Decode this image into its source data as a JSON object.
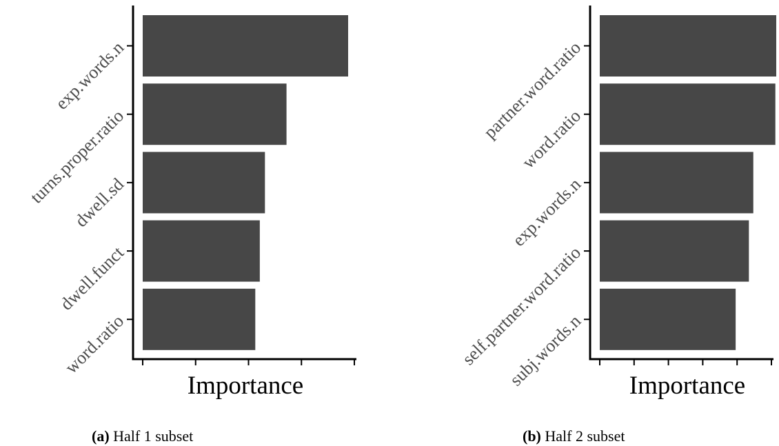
{
  "chart_data": [
    {
      "type": "bar",
      "orientation": "horizontal",
      "categories": [
        "exp.words.n",
        "turns.proper.ratio",
        "dwell.sd",
        "dwell.funct",
        "word.ratio"
      ],
      "values": [
        1.0,
        0.7,
        0.595,
        0.57,
        0.548
      ],
      "xlabel": "Importance",
      "ylabel": "",
      "xlim": [
        0,
        1.04
      ],
      "x_ticks_count": 5,
      "grid": false,
      "bar_color": "#474747",
      "caption_tag": "(a)",
      "caption_text": "Half 1 subset"
    },
    {
      "type": "bar",
      "orientation": "horizontal",
      "categories": [
        "partner.word.ratio",
        "word.ratio",
        "exp.words.n",
        "self.partner.word.ratio",
        "subj.words.n"
      ],
      "values": [
        1.0,
        0.995,
        0.87,
        0.845,
        0.77
      ],
      "xlabel": "Importance",
      "ylabel": "",
      "xlim": [
        0,
        1.0
      ],
      "x_ticks_count": 6,
      "grid": false,
      "bar_color": "#474747",
      "caption_tag": "(b)",
      "caption_text": "Half 2 subset"
    }
  ]
}
